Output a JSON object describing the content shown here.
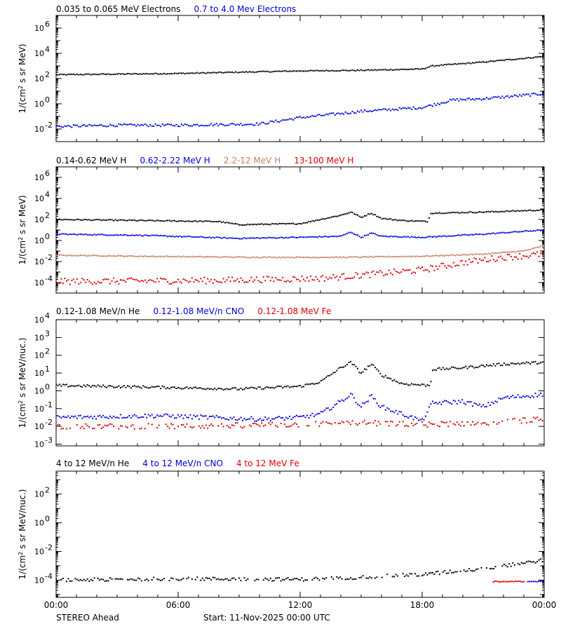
{
  "colors": {
    "black": "#000000",
    "blue": "#0000dd",
    "tan": "#c88060",
    "red": "#dd0000"
  },
  "x_axis": {
    "ticks": [
      "00:00",
      "06:00",
      "12:00",
      "18:00",
      "00:00"
    ],
    "range_hours": [
      0,
      24
    ]
  },
  "footer": {
    "left": "STEREO Ahead",
    "center": "Start: 11-Nov-2025 00:00 UTC"
  },
  "chart_data": [
    {
      "type": "scatter",
      "ylabel_base": "1/(cm",
      "ylabel_sup": "2",
      "ylabel_rest": " s sr MeV)",
      "ylog": true,
      "ylim_exp": [
        -3,
        7
      ],
      "ytick_exps": [
        -2,
        0,
        2,
        4,
        6
      ],
      "series": [
        {
          "name": "0.035 to 0.065 MeV Electrons",
          "color": "black",
          "x": [
            0,
            3,
            6,
            9,
            12,
            15,
            18,
            18.5,
            21,
            24
          ],
          "log_y": [
            2.3,
            2.35,
            2.4,
            2.5,
            2.6,
            2.65,
            2.75,
            3.0,
            3.3,
            3.75
          ],
          "jitter": 0.04,
          "gaps": []
        },
        {
          "name": "0.7 to 4.0 Mev Electrons",
          "color": "blue",
          "x": [
            0,
            3,
            6,
            10,
            12,
            15,
            18,
            19.5,
            21,
            24
          ],
          "log_y": [
            -1.8,
            -1.7,
            -1.7,
            -1.6,
            -1.1,
            -0.6,
            -0.3,
            0.3,
            0.4,
            0.8
          ],
          "jitter": 0.1,
          "gaps": []
        }
      ]
    },
    {
      "type": "scatter",
      "ylabel_base": "1/(cm",
      "ylabel_sup": "2",
      "ylabel_rest": " s sr MeV)",
      "ylog": true,
      "ylim_exp": [
        -5,
        7
      ],
      "ytick_exps": [
        -4,
        -2,
        0,
        2,
        4,
        6
      ],
      "series": [
        {
          "name": "0.14-0.62 MeV H",
          "color": "black",
          "x": [
            0,
            4,
            8,
            9,
            12,
            13,
            14,
            14.5,
            15,
            15.5,
            16,
            17,
            18.3,
            18.4,
            21,
            24
          ],
          "log_y": [
            2.0,
            1.9,
            1.8,
            1.5,
            1.6,
            2.0,
            2.4,
            2.7,
            2.2,
            2.6,
            2.1,
            1.9,
            1.8,
            2.6,
            2.7,
            2.9
          ],
          "jitter": 0.05,
          "gaps": []
        },
        {
          "name": "0.62-2.22 MeV H",
          "color": "blue",
          "x": [
            0,
            4,
            9,
            12,
            14,
            14.5,
            15,
            15.5,
            16,
            18,
            21,
            24
          ],
          "log_y": [
            0.6,
            0.5,
            0.2,
            0.3,
            0.4,
            0.8,
            0.3,
            0.7,
            0.4,
            0.3,
            0.6,
            1.0
          ],
          "jitter": 0.05,
          "gaps": []
        },
        {
          "name": "2.2-12 MeV H",
          "color": "tan",
          "x": [
            0,
            4,
            10,
            14,
            18,
            21,
            23,
            24
          ],
          "log_y": [
            -1.4,
            -1.5,
            -1.6,
            -1.6,
            -1.5,
            -1.3,
            -1.0,
            -0.5
          ],
          "jitter": 0.04,
          "gaps": []
        },
        {
          "name": "13-100 MeV H",
          "color": "red",
          "x": [
            0,
            8,
            13,
            15,
            18,
            20,
            22,
            24
          ],
          "log_y": [
            -3.9,
            -3.8,
            -3.6,
            -3.3,
            -2.8,
            -2.1,
            -1.6,
            -1.3
          ],
          "jitter": 0.3,
          "gaps": []
        }
      ]
    },
    {
      "type": "scatter",
      "ylabel_base": "1/(cm",
      "ylabel_sup": "2",
      "ylabel_rest": " s sr MeV/nuc.)",
      "ylog": true,
      "ylim_exp": [
        -3.1,
        4
      ],
      "ytick_exps": [
        -3,
        -2,
        -1,
        0,
        1,
        2,
        3,
        4
      ],
      "series": [
        {
          "name": "0.12-1.08 MeV/n He",
          "color": "black",
          "x": [
            0,
            5,
            9,
            12,
            13,
            14,
            14.5,
            15,
            15.5,
            16,
            17,
            18.4,
            18.5,
            20,
            22,
            24
          ],
          "log_y": [
            0.3,
            0.2,
            0.1,
            0.25,
            0.5,
            1.3,
            1.6,
            1.0,
            1.5,
            0.9,
            0.4,
            0.3,
            1.2,
            1.3,
            1.5,
            1.6
          ],
          "jitter": 0.07,
          "gaps": []
        },
        {
          "name": "0.12-1.08 MeV/n CNO",
          "color": "blue",
          "x": [
            0,
            5,
            10,
            12,
            13,
            14,
            14.5,
            15,
            15.5,
            16,
            17,
            18,
            18.5,
            20,
            21,
            22,
            24
          ],
          "log_y": [
            -1.5,
            -1.4,
            -1.6,
            -1.5,
            -1.3,
            -0.6,
            -0.2,
            -0.9,
            -0.3,
            -0.9,
            -1.3,
            -1.7,
            -0.7,
            -0.6,
            -0.9,
            -0.4,
            -0.2
          ],
          "jitter": 0.12,
          "gaps": []
        },
        {
          "name": "0.12-1.08 MeV Fe",
          "color": "red",
          "x": [
            0,
            6,
            12,
            15,
            18,
            21,
            24
          ],
          "log_y": [
            -2.0,
            -2.0,
            -1.9,
            -1.8,
            -1.9,
            -1.8,
            -1.6
          ],
          "jitter": 0.15,
          "gaps": []
        }
      ]
    },
    {
      "type": "scatter",
      "ylabel_base": "1/(cm",
      "ylabel_sup": "2",
      "ylabel_rest": " s sr MeV/nuc.)",
      "ylog": true,
      "ylim_exp": [
        -5.2,
        3.6
      ],
      "ytick_exps": [
        -4,
        -2,
        0,
        2
      ],
      "series": [
        {
          "name": "4 to 12 MeV/n He",
          "color": "black",
          "x": [
            0,
            6,
            12,
            15,
            18,
            21,
            24
          ],
          "log_y": [
            -4.0,
            -3.9,
            -3.95,
            -3.8,
            -3.6,
            -3.2,
            -2.6
          ],
          "jitter": 0.12,
          "gaps": []
        },
        {
          "name": "4 to 12 MeV/n CNO",
          "color": "blue",
          "x": [
            23.2,
            24
          ],
          "log_y": [
            -4.1,
            -4.1
          ],
          "jitter": 0.03,
          "gaps": []
        },
        {
          "name": "4 to 12 MeV Fe",
          "color": "red",
          "x": [
            21.5,
            23
          ],
          "log_y": [
            -4.1,
            -4.1
          ],
          "jitter": 0.03,
          "gaps": []
        }
      ]
    }
  ]
}
